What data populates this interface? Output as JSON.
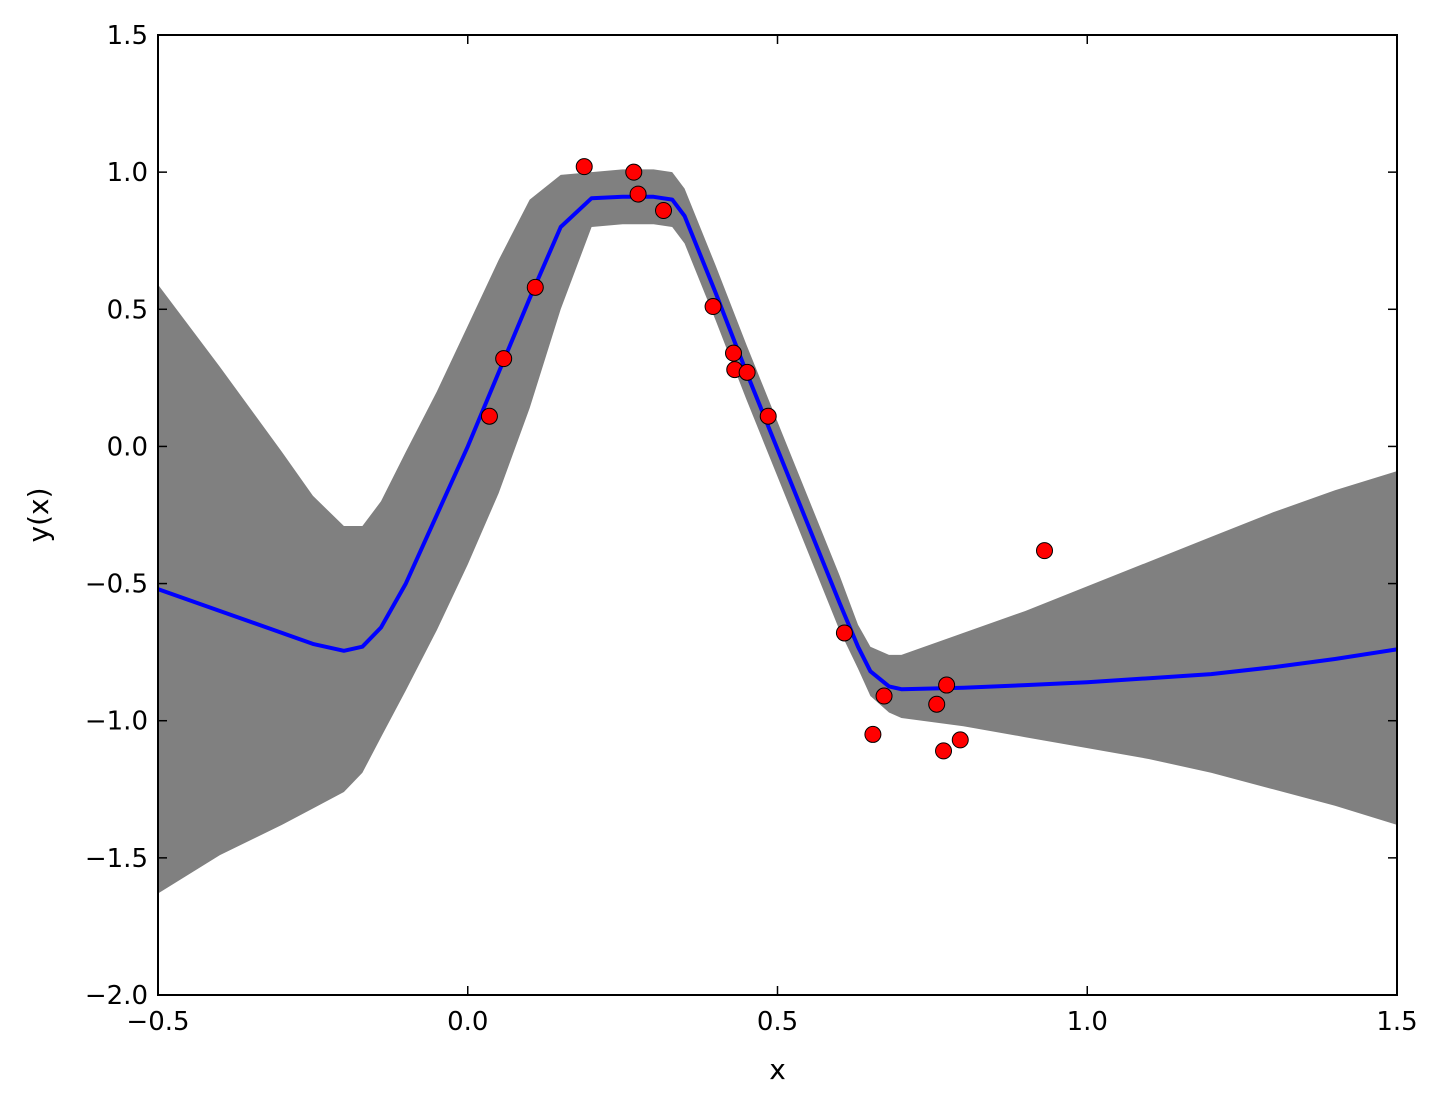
{
  "chart_data": {
    "type": "scatter",
    "xlabel": "x",
    "ylabel": "y(x)",
    "xlim": [
      -0.5,
      1.5
    ],
    "ylim": [
      -2.0,
      1.5
    ],
    "x_ticks": [
      "−0.5",
      "0.0",
      "0.5",
      "1.0",
      "1.5"
    ],
    "y_ticks": [
      "−2.0",
      "−1.5",
      "−1.0",
      "−0.5",
      "0.0",
      "0.5",
      "1.0",
      "1.5"
    ],
    "grid": false,
    "legend": "none",
    "colors": {
      "mean": "#0000ff",
      "band": "#808080",
      "points": "#ff0000"
    },
    "points": {
      "x": [
        0.035,
        0.058,
        0.109,
        0.188,
        0.268,
        0.275,
        0.316,
        0.396,
        0.429,
        0.431,
        0.451,
        0.485,
        0.608,
        0.654,
        0.672,
        0.757,
        0.768,
        0.773,
        0.795,
        0.931
      ],
      "y": [
        0.11,
        0.32,
        0.58,
        1.02,
        1.0,
        0.92,
        0.86,
        0.51,
        0.34,
        0.28,
        0.27,
        0.11,
        -0.68,
        -1.05,
        -0.91,
        -0.94,
        -1.11,
        -0.87,
        -1.07,
        -0.38
      ]
    },
    "mean_line": {
      "x": [
        -0.5,
        -0.4,
        -0.3,
        -0.25,
        -0.2,
        -0.17,
        -0.14,
        -0.1,
        -0.05,
        0.0,
        0.05,
        0.1,
        0.15,
        0.2,
        0.25,
        0.3,
        0.33,
        0.35,
        0.4,
        0.45,
        0.5,
        0.55,
        0.6,
        0.63,
        0.65,
        0.68,
        0.7,
        0.8,
        0.9,
        1.0,
        1.1,
        1.2,
        1.3,
        1.4,
        1.5
      ],
      "y": [
        -0.52,
        -0.6,
        -0.68,
        -0.72,
        -0.745,
        -0.73,
        -0.66,
        -0.5,
        -0.25,
        0.0,
        0.27,
        0.54,
        0.8,
        0.905,
        0.91,
        0.91,
        0.9,
        0.84,
        0.56,
        0.27,
        -0.01,
        -0.29,
        -0.57,
        -0.73,
        -0.82,
        -0.875,
        -0.885,
        -0.88,
        -0.87,
        -0.86,
        -0.845,
        -0.83,
        -0.805,
        -0.775,
        -0.74
      ]
    },
    "band": {
      "x": [
        -0.5,
        -0.4,
        -0.3,
        -0.25,
        -0.2,
        -0.17,
        -0.14,
        -0.1,
        -0.05,
        0.0,
        0.05,
        0.1,
        0.15,
        0.2,
        0.25,
        0.3,
        0.33,
        0.35,
        0.4,
        0.45,
        0.5,
        0.55,
        0.6,
        0.63,
        0.65,
        0.68,
        0.7,
        0.8,
        0.9,
        1.0,
        1.1,
        1.2,
        1.3,
        1.4,
        1.5
      ],
      "upper": [
        0.59,
        0.29,
        -0.02,
        -0.18,
        -0.29,
        -0.29,
        -0.2,
        -0.02,
        0.2,
        0.44,
        0.68,
        0.9,
        0.99,
        1.0,
        1.01,
        1.01,
        1.0,
        0.94,
        0.66,
        0.37,
        0.09,
        -0.19,
        -0.47,
        -0.65,
        -0.73,
        -0.76,
        -0.76,
        -0.68,
        -0.6,
        -0.51,
        -0.42,
        -0.33,
        -0.24,
        -0.16,
        -0.09
      ],
      "lower": [
        -1.63,
        -1.49,
        -1.38,
        -1.32,
        -1.26,
        -1.19,
        -1.06,
        -0.89,
        -0.67,
        -0.43,
        -0.17,
        0.14,
        0.5,
        0.8,
        0.81,
        0.81,
        0.8,
        0.74,
        0.46,
        0.17,
        -0.11,
        -0.39,
        -0.67,
        -0.81,
        -0.91,
        -0.97,
        -0.99,
        -1.02,
        -1.06,
        -1.1,
        -1.14,
        -1.19,
        -1.25,
        -1.31,
        -1.38
      ]
    }
  }
}
